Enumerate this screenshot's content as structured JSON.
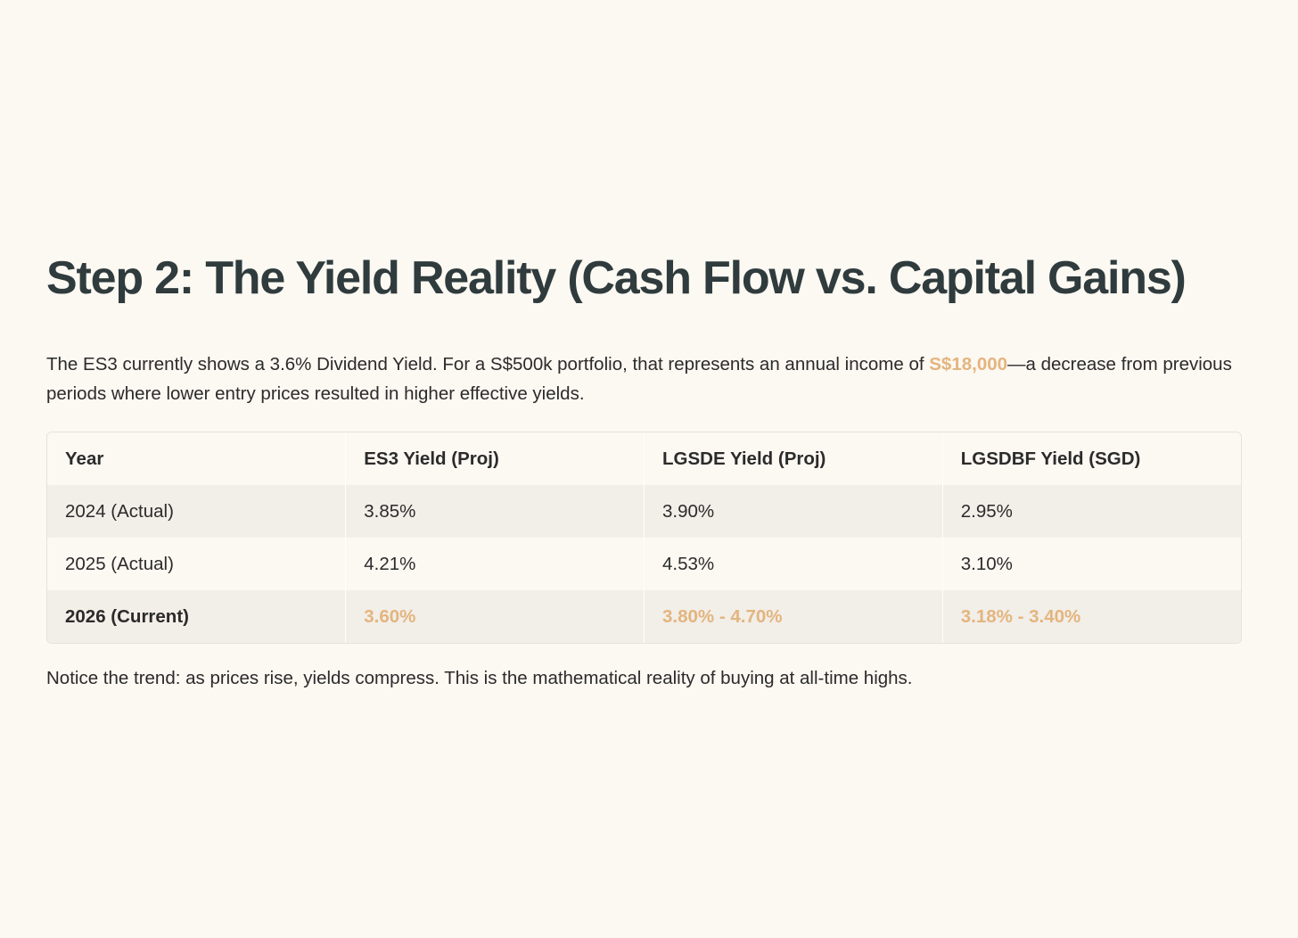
{
  "heading": "Step 2: The Yield Reality (Cash Flow vs. Capital Gains)",
  "intro": {
    "before": "The ES3 currently shows a 3.6% Dividend Yield. For a S$500k portfolio, that represents an annual income of ",
    "highlight": "S$18,000",
    "after": "—a decrease from previous periods where lower entry prices resulted in higher effective yields."
  },
  "table": {
    "headers": [
      "Year",
      "ES3 Yield (Proj)",
      "LGSDE Yield (Proj)",
      "LGSDBF Yield (SGD)"
    ],
    "rows": [
      [
        "2024 (Actual)",
        "3.85%",
        "3.90%",
        "2.95%"
      ],
      [
        "2025 (Actual)",
        "4.21%",
        "4.53%",
        "3.10%"
      ],
      [
        "2026 (Current)",
        "3.60%",
        "3.80% - 4.70%",
        "3.18% - 3.40%"
      ]
    ]
  },
  "note": "Notice the trend: as prices rise, yields compress. This is the mathematical reality of buying at all-time highs.",
  "colors": {
    "background": "#fcf8f2",
    "heading": "#2f3b3d",
    "accent": "#e3b57f",
    "row_shade": "#f2eee8"
  }
}
